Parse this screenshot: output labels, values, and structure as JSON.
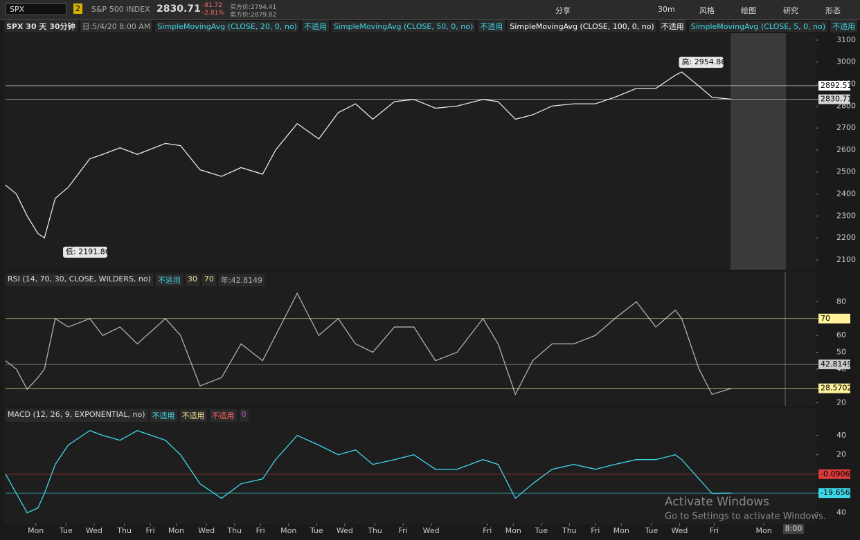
{
  "toolbar": {
    "symbol": "SPX",
    "link": "2",
    "description": "S&P 500 INDEX",
    "last": "2830.71",
    "change": "-81.72",
    "change_pct": "-2.81%",
    "bid": "买方价:2794.41",
    "ask": "卖方价:2879.82",
    "buttons": [
      "分享",
      "30m",
      "风格",
      "绘图",
      "研究",
      "形态"
    ]
  },
  "price_header": {
    "title": "SPX 30 天 30分钟",
    "date": "日:5/4/20 8:00 AM",
    "studies": [
      {
        "name": "SimpleMovingAvg (CLOSE, 20, 0, no)",
        "value": "不适用"
      },
      {
        "name": "SimpleMovingAvg (CLOSE, 50, 0, no)",
        "value": "不适用"
      },
      {
        "name": "SimpleMovingAvg (CLOSE, 100, 0, no)",
        "value": "不适用"
      },
      {
        "name": "SimpleMovingAvg (CLOSE, 5, 0, no)",
        "value": "不适用"
      }
    ]
  },
  "rsi_header": {
    "name": "RSI (14, 70, 30, CLOSE, WILDERS, no)",
    "items": [
      "不适用",
      "30",
      "70",
      "年:42.8149"
    ]
  },
  "macd_header": {
    "name": "MACD (12, 26, 9, EXPONENTIAL, no)",
    "items": [
      "不适用",
      "不适用",
      "不适用",
      "0"
    ]
  },
  "time_tag": "8:00",
  "watermark": {
    "title": "Activate Windows",
    "text": "Go to Settings to activate Windows."
  },
  "chart_data": [
    {
      "type": "line",
      "color": "#e8e8e8",
      "x": [
        0,
        5,
        10,
        15,
        18,
        23,
        29,
        39,
        45,
        53,
        61,
        74,
        81,
        90,
        100,
        109,
        119,
        125,
        135,
        145,
        154,
        162,
        170,
        180,
        189,
        199,
        209,
        221,
        228,
        236,
        244,
        253,
        263,
        273,
        282,
        292,
        301,
        310,
        313,
        321,
        327,
        336
      ],
      "values": [
        2440,
        2400,
        2300,
        2220,
        2200,
        2380,
        2430,
        2560,
        2580,
        2610,
        2580,
        2630,
        2620,
        2510,
        2480,
        2520,
        2490,
        2600,
        2720,
        2650,
        2770,
        2810,
        2740,
        2820,
        2830,
        2790,
        2800,
        2830,
        2820,
        2740,
        2760,
        2800,
        2810,
        2810,
        2840,
        2880,
        2880,
        2940,
        2955,
        2890,
        2840,
        2830.71
      ],
      "xlim": [
        0,
        375
      ],
      "xticks": [
        {
          "value": 14,
          "label": "Mon"
        },
        {
          "value": 28,
          "label": "Tue"
        },
        {
          "value": 41,
          "label": "Wed"
        },
        {
          "value": 55,
          "label": "Thu"
        },
        {
          "value": 67,
          "label": "Fri"
        },
        {
          "value": 79,
          "label": "Mon"
        },
        {
          "value": 93,
          "label": "Wed"
        },
        {
          "value": 106,
          "label": "Thu"
        },
        {
          "value": 118,
          "label": "Fri"
        },
        {
          "value": 131,
          "label": "Mon"
        },
        {
          "value": 144,
          "label": "Tue"
        },
        {
          "value": 157,
          "label": "Wed"
        },
        {
          "value": 171,
          "label": "Thu"
        },
        {
          "value": 184,
          "label": "Fri"
        },
        {
          "value": 197,
          "label": "Wed"
        },
        {
          "value": 223,
          "label": "Fri"
        },
        {
          "value": 235,
          "label": "Mon"
        },
        {
          "value": 248,
          "label": "Tue"
        },
        {
          "value": 261,
          "label": "Thu"
        },
        {
          "value": 273,
          "label": "Fri"
        },
        {
          "value": 285,
          "label": "Mon"
        },
        {
          "value": 299,
          "label": "Tue"
        },
        {
          "value": 312,
          "label": "Wed"
        },
        {
          "value": 328,
          "label": "Fri"
        },
        {
          "value": 351,
          "label": "Mon"
        }
      ],
      "ylim": [
        2062,
        3125
      ],
      "yticks": [
        2100,
        2200,
        2300,
        2400,
        2500,
        2600,
        2700,
        2800,
        2900,
        3000,
        3100
      ],
      "tags": [
        {
          "value": 2892.51,
          "label": "2892.51",
          "color": "#ffffff"
        },
        {
          "value": 2830.71,
          "label": "2830.71",
          "color": "#d8d8d8"
        }
      ],
      "annotations": [
        {
          "x": 313,
          "value": 2954.86,
          "label": "高: 2954.86"
        },
        {
          "x": 17,
          "value": 2191.86,
          "label": "低: 2191.86"
        }
      ]
    },
    {
      "type": "line",
      "color": "#b0b0b0",
      "values": [
        45,
        40,
        28,
        35,
        40,
        70,
        65,
        70,
        60,
        65,
        55,
        70,
        60,
        30,
        35,
        55,
        45,
        60,
        85,
        60,
        70,
        55,
        50,
        65,
        65,
        45,
        50,
        70,
        55,
        25,
        45,
        55,
        55,
        60,
        70,
        80,
        65,
        75,
        70,
        40,
        25,
        28.5702
      ],
      "ylim": [
        19,
        97
      ],
      "yticks": [
        20,
        40,
        50,
        60,
        80
      ],
      "tags": [
        {
          "value": 70,
          "label": "70",
          "color": "#fff29a"
        },
        {
          "value": 42.8149,
          "label": "42.8149",
          "color": "#c8c8c8"
        },
        {
          "value": 28.5702,
          "label": "28.5702",
          "color": "#fff29a"
        }
      ]
    },
    {
      "type": "line",
      "color": "#3fd7e8",
      "values": [
        0,
        -20,
        -40,
        -35,
        -20,
        10,
        30,
        45,
        40,
        35,
        45,
        35,
        20,
        -10,
        -25,
        -10,
        -5,
        15,
        40,
        30,
        20,
        25,
        10,
        15,
        20,
        5,
        5,
        15,
        10,
        -25,
        -10,
        5,
        10,
        5,
        10,
        15,
        15,
        20,
        15,
        -5,
        -20,
        -19.656
      ],
      "ylim": [
        -51,
        67
      ],
      "yticks": [
        40,
        20,
        {
          "value": -40,
          "label": "40"
        }
      ],
      "tags": [
        {
          "value": -0.0906,
          "label": "-0.0906",
          "color": "#d83b3b"
        },
        {
          "value": -19.656,
          "label": "-19.656",
          "color": "#3fd7e8"
        }
      ]
    }
  ]
}
